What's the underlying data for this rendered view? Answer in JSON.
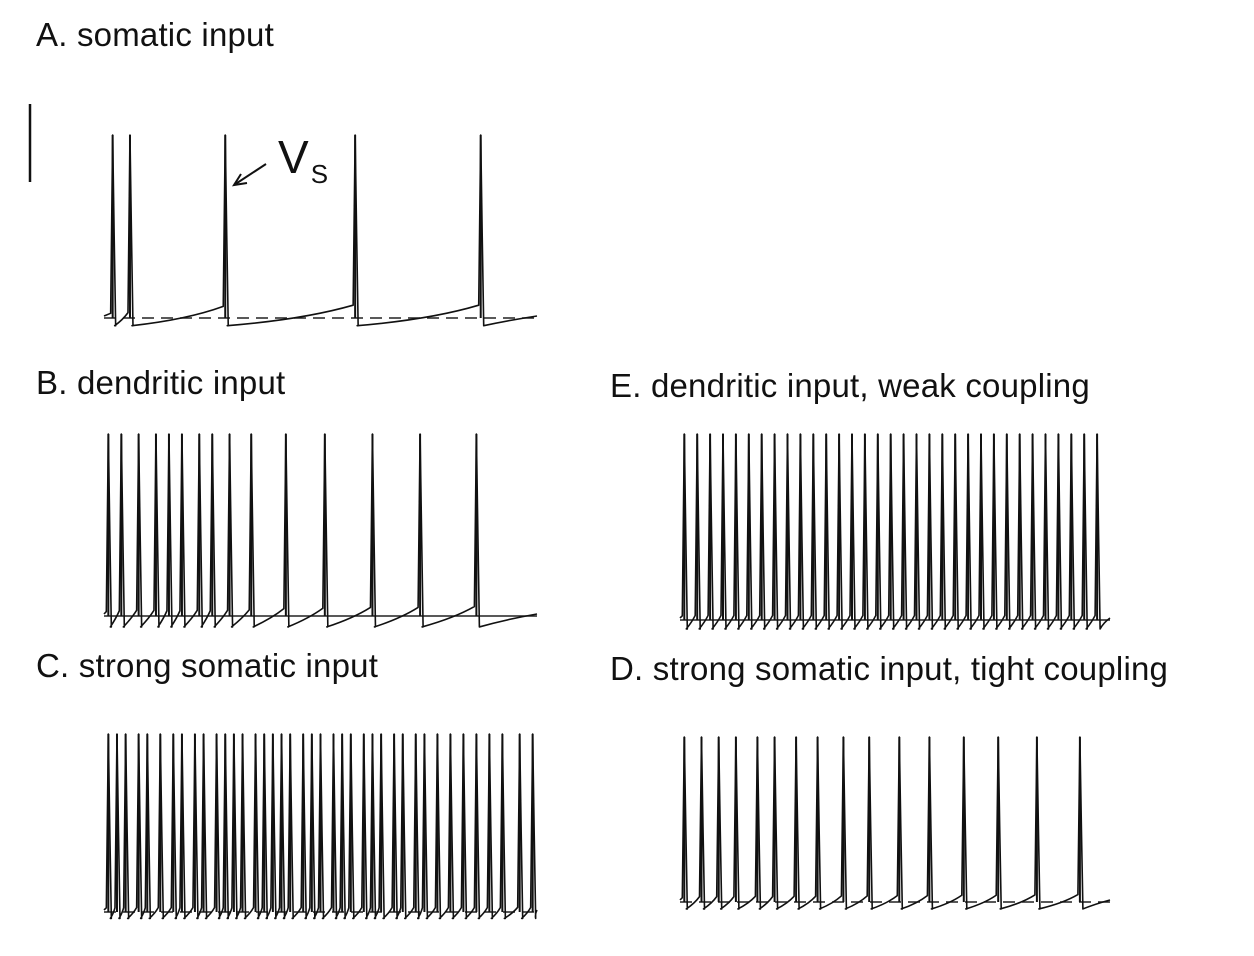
{
  "figure": {
    "annotation": {
      "label": "V",
      "subscript": "S"
    }
  },
  "chart_data": [
    {
      "type": "line",
      "panel": "A",
      "title": "A. somatic input",
      "series": [
        {
          "spikes": [
            0.02,
            0.06,
            0.28,
            0.58,
            0.87
          ],
          "ramp_factor": 1.0,
          "ahp_depth": 0.35
        }
      ],
      "baseline": "dashed",
      "scale_bar": true
    },
    {
      "type": "line",
      "panel": "B",
      "title": "B. dendritic input",
      "series": [
        {
          "spikes": [
            0.01,
            0.04,
            0.08,
            0.12,
            0.15,
            0.18,
            0.22,
            0.25,
            0.29,
            0.34,
            0.42,
            0.51,
            0.62,
            0.73,
            0.86
          ],
          "ramp_factor": 1.2,
          "ahp_depth": 0.5
        }
      ],
      "baseline": "solid"
    },
    {
      "type": "line",
      "panel": "C",
      "title": "C. strong somatic input",
      "series": [
        {
          "spikes": [
            0.01,
            0.03,
            0.05,
            0.08,
            0.1,
            0.13,
            0.16,
            0.18,
            0.21,
            0.23,
            0.26,
            0.28,
            0.3,
            0.32,
            0.35,
            0.37,
            0.39,
            0.41,
            0.43,
            0.46,
            0.48,
            0.5,
            0.53,
            0.55,
            0.57,
            0.6,
            0.62,
            0.64,
            0.67,
            0.69,
            0.72,
            0.74,
            0.77,
            0.8,
            0.83,
            0.86,
            0.89,
            0.92,
            0.96,
            0.99
          ],
          "ramp_factor": 0.5,
          "ahp_depth": 0.3
        }
      ],
      "baseline": "dashed"
    },
    {
      "type": "line",
      "panel": "E",
      "title": "E. dendritic input, weak coupling",
      "series": [
        {
          "spikes": [
            0.01,
            0.04,
            0.07,
            0.1,
            0.13,
            0.16,
            0.19,
            0.22,
            0.25,
            0.28,
            0.31,
            0.34,
            0.37,
            0.4,
            0.43,
            0.46,
            0.49,
            0.52,
            0.55,
            0.58,
            0.61,
            0.64,
            0.67,
            0.7,
            0.73,
            0.76,
            0.79,
            0.82,
            0.85,
            0.88,
            0.91,
            0.94,
            0.97
          ],
          "ramp_factor": 0.55,
          "ahp_depth": 0.4
        }
      ],
      "baseline": "solid"
    },
    {
      "type": "line",
      "panel": "D",
      "title": "D. strong somatic input, tight coupling",
      "series": [
        {
          "spikes": [
            0.01,
            0.05,
            0.09,
            0.13,
            0.18,
            0.22,
            0.27,
            0.32,
            0.38,
            0.44,
            0.51,
            0.58,
            0.66,
            0.74,
            0.83,
            0.93
          ],
          "ramp_factor": 1.0,
          "ahp_depth": 0.35
        }
      ],
      "baseline": "dashed"
    }
  ]
}
